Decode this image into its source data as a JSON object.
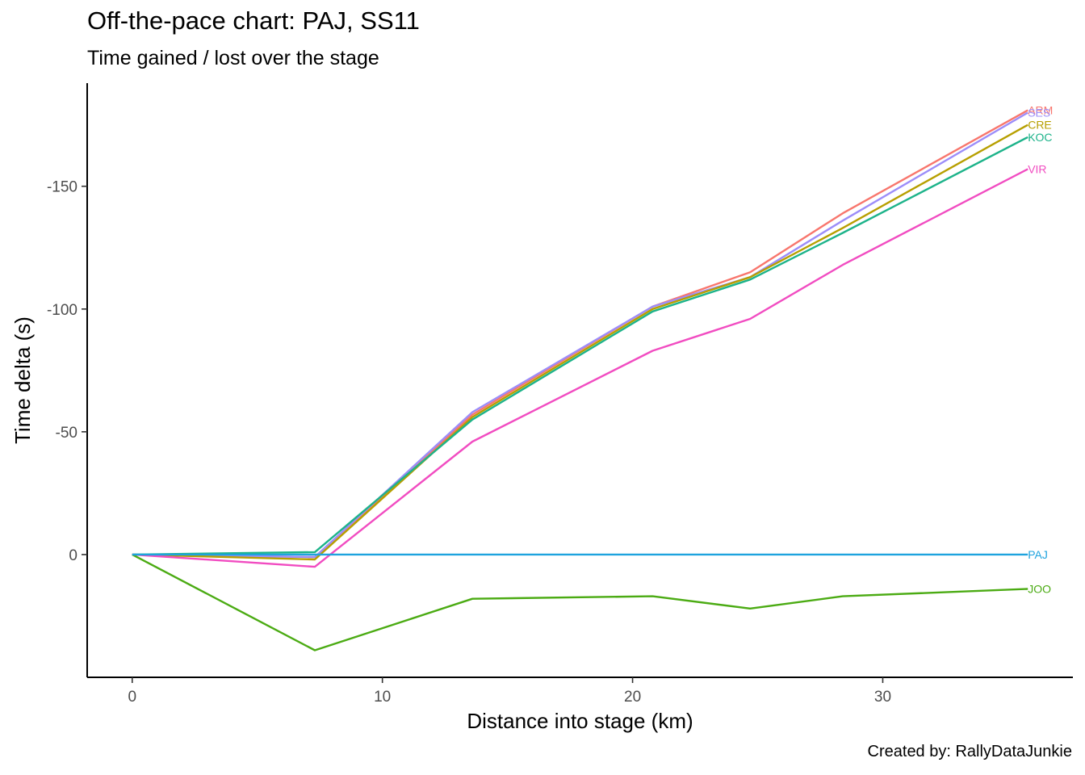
{
  "title": "Off-the-pace chart: PAJ, SS11",
  "subtitle": "Time gained / lost over the stage",
  "caption": "Created by: RallyDataJunkie",
  "chart_data": {
    "type": "line",
    "title": "Off-the-pace chart: PAJ, SS11",
    "subtitle": "Time gained / lost over the stage",
    "xlabel": "Distance into stage (km)",
    "ylabel": "Time delta (s)",
    "y_reversed": true,
    "xlim": [
      -1.8,
      37.6
    ],
    "ylim": [
      50,
      -192
    ],
    "x_ticks": [
      0,
      10,
      20,
      30
    ],
    "x_tick_labels": [
      "0",
      "10",
      "20",
      "30"
    ],
    "y_ticks": [
      -150,
      -100,
      -50,
      0
    ],
    "y_tick_labels": [
      "-150",
      "-100",
      "-50",
      "0"
    ],
    "grid": false,
    "legend": "direct end-of-line labels",
    "x": [
      0,
      7.3,
      13.6,
      20.8,
      24.7,
      28.4,
      35.8
    ],
    "series": [
      {
        "name": "ARM",
        "color": "#F8766D",
        "values": [
          0,
          1,
          -57,
          -101,
          -115,
          -139,
          -181
        ]
      },
      {
        "name": "SES",
        "color": "#9C8DF9",
        "values": [
          0,
          1,
          -58,
          -101,
          -113,
          -136,
          -180
        ]
      },
      {
        "name": "CRE",
        "color": "#B79F00",
        "values": [
          0,
          2,
          -56,
          -100,
          -113,
          -133,
          -175
        ]
      },
      {
        "name": "KOC",
        "color": "#1DB38A",
        "values": [
          0,
          -1,
          -55,
          -99,
          -112,
          -131,
          -170
        ]
      },
      {
        "name": "VIR",
        "color": "#F14CC1",
        "values": [
          0,
          5,
          -46,
          -83,
          -96,
          -118,
          -157
        ]
      },
      {
        "name": "PAJ",
        "color": "#1EA3DE",
        "values": [
          0,
          0,
          0,
          0,
          0,
          0,
          0
        ]
      },
      {
        "name": "JOO",
        "color": "#4BAB13",
        "values": [
          0,
          39,
          18,
          17,
          22,
          17,
          14
        ]
      }
    ]
  }
}
